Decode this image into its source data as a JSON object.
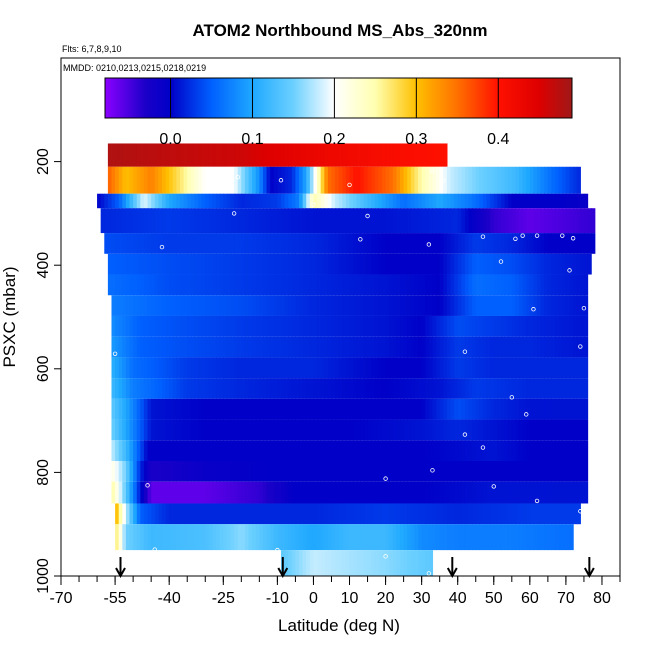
{
  "chart_data": {
    "type": "heatmap",
    "title": "ATOM2 Northbound MS_Abs_320nm",
    "flights_text": "Flts: 6,7,8,9,10",
    "dates_text": "MMDD: 0210,0213,0215,0218,0219",
    "xlabel": "Latitude (deg N)",
    "ylabel": "PSXC (mbar)",
    "xlim": [
      -70,
      85
    ],
    "ylim": [
      1000,
      0
    ],
    "x_ticks": [
      -70,
      -55,
      -40,
      -25,
      -10,
      0,
      10,
      20,
      30,
      40,
      50,
      60,
      70,
      80
    ],
    "x_tick_labels": [
      "-70",
      "-55",
      "-40",
      "-25",
      "-10",
      "0",
      "10",
      "20",
      "30",
      "40",
      "50",
      "60",
      "70",
      "80"
    ],
    "x_minor_step": 5,
    "y_ticks": [
      200,
      400,
      600,
      800,
      1000
    ],
    "y_tick_labels": [
      "200",
      "400",
      "600",
      "800",
      "1000"
    ],
    "colorbar": {
      "range": [
        -0.08,
        0.49
      ],
      "ticks": [
        0.0,
        0.1,
        0.2,
        0.3,
        0.4
      ],
      "tick_labels": [
        "0.0",
        "0.1",
        "0.2",
        "0.3",
        "0.4"
      ],
      "stops": [
        {
          "value": -0.08,
          "color": "#8b00ff"
        },
        {
          "value": -0.03,
          "color": "#1a00c8"
        },
        {
          "value": 0.0,
          "color": "#0000c8"
        },
        {
          "value": 0.05,
          "color": "#0060ff"
        },
        {
          "value": 0.1,
          "color": "#1ea8ff"
        },
        {
          "value": 0.15,
          "color": "#6cd0ff"
        },
        {
          "value": 0.2,
          "color": "#ffffff"
        },
        {
          "value": 0.25,
          "color": "#ffffb0"
        },
        {
          "value": 0.3,
          "color": "#ffc000"
        },
        {
          "value": 0.35,
          "color": "#ff7000"
        },
        {
          "value": 0.4,
          "color": "#ff1000"
        },
        {
          "value": 0.45,
          "color": "#dd0000"
        },
        {
          "value": 0.49,
          "color": "#a01818"
        }
      ]
    },
    "arrow_latitudes": [
      -53.5,
      -8.5,
      38.5,
      76.5
    ],
    "pressure_bands": [
      {
        "p_top": 165,
        "p_bot": 210,
        "lat_start": -57,
        "lat_end": 37,
        "nodes": [
          [
            -57,
            0.48
          ],
          [
            -40,
            0.47
          ],
          [
            -20,
            0.46
          ],
          [
            0,
            0.43
          ],
          [
            20,
            0.41
          ],
          [
            37,
            0.4
          ]
        ]
      },
      {
        "p_top": 210,
        "p_bot": 262,
        "lat_start": -57,
        "lat_end": 74,
        "nodes": [
          [
            -57,
            0.36
          ],
          [
            -52,
            0.3
          ],
          [
            -45,
            0.34
          ],
          [
            -38,
            0.28
          ],
          [
            -30,
            0.2
          ],
          [
            -22,
            0.2
          ],
          [
            -15,
            0.08
          ],
          [
            -12,
            0.0
          ],
          [
            -6,
            0.02
          ],
          [
            -2,
            0.1
          ],
          [
            4,
            0.35
          ],
          [
            12,
            0.4
          ],
          [
            22,
            0.35
          ],
          [
            30,
            0.25
          ],
          [
            38,
            0.18
          ],
          [
            46,
            0.15
          ],
          [
            56,
            0.12
          ],
          [
            66,
            0.06
          ],
          [
            74,
            0.02
          ]
        ]
      },
      {
        "p_top": 262,
        "p_bot": 290,
        "lat_start": -60,
        "lat_end": 76,
        "nodes": [
          [
            -60,
            0.0
          ],
          [
            -54,
            0.05
          ],
          [
            -47,
            0.19
          ],
          [
            -40,
            0.1
          ],
          [
            -30,
            0.05
          ],
          [
            -20,
            0.02
          ],
          [
            -10,
            0.03
          ],
          [
            -4,
            0.07
          ],
          [
            0,
            0.25
          ],
          [
            6,
            0.18
          ],
          [
            15,
            0.12
          ],
          [
            25,
            0.06
          ],
          [
            35,
            0.1
          ],
          [
            45,
            0.06
          ],
          [
            55,
            0.0
          ],
          [
            68,
            0.0
          ],
          [
            76,
            -0.01
          ]
        ]
      },
      {
        "p_top": 290,
        "p_bot": 338,
        "lat_start": -59,
        "lat_end": 78,
        "nodes": [
          [
            -59,
            0.02
          ],
          [
            -40,
            0.03
          ],
          [
            -20,
            0.02
          ],
          [
            0,
            0.01
          ],
          [
            20,
            0.01
          ],
          [
            40,
            0.02
          ],
          [
            50,
            -0.04
          ],
          [
            60,
            -0.06
          ],
          [
            70,
            -0.05
          ],
          [
            78,
            -0.04
          ]
        ]
      },
      {
        "p_top": 338,
        "p_bot": 378,
        "lat_start": -58,
        "lat_end": 78,
        "nodes": [
          [
            -58,
            0.04
          ],
          [
            -40,
            0.03
          ],
          [
            -20,
            0.03
          ],
          [
            0,
            0.02
          ],
          [
            20,
            0.0
          ],
          [
            35,
            0.0
          ],
          [
            45,
            0.03
          ],
          [
            55,
            0.02
          ],
          [
            65,
            0.0
          ],
          [
            78,
            0.0
          ]
        ]
      },
      {
        "p_top": 378,
        "p_bot": 418,
        "lat_start": -57,
        "lat_end": 77,
        "nodes": [
          [
            -57,
            0.05
          ],
          [
            -40,
            0.04
          ],
          [
            -20,
            0.03
          ],
          [
            0,
            0.02
          ],
          [
            20,
            0.0
          ],
          [
            35,
            0.0
          ],
          [
            45,
            0.05
          ],
          [
            55,
            0.04
          ],
          [
            65,
            0.02
          ],
          [
            77,
            0.01
          ]
        ]
      },
      {
        "p_top": 418,
        "p_bot": 458,
        "lat_start": -57,
        "lat_end": 76,
        "nodes": [
          [
            -57,
            0.06
          ],
          [
            -40,
            0.04
          ],
          [
            -20,
            0.03
          ],
          [
            0,
            0.02
          ],
          [
            20,
            0.01
          ],
          [
            35,
            0.0
          ],
          [
            45,
            0.06
          ],
          [
            55,
            0.05
          ],
          [
            65,
            0.02
          ],
          [
            76,
            0.01
          ]
        ]
      },
      {
        "p_top": 458,
        "p_bot": 498,
        "lat_start": -56,
        "lat_end": 76,
        "nodes": [
          [
            -56,
            0.07
          ],
          [
            -40,
            0.05
          ],
          [
            -20,
            0.04
          ],
          [
            0,
            0.02
          ],
          [
            20,
            0.01
          ],
          [
            35,
            0.0
          ],
          [
            45,
            0.05
          ],
          [
            55,
            0.05
          ],
          [
            65,
            0.02
          ],
          [
            76,
            0.01
          ]
        ]
      },
      {
        "p_top": 498,
        "p_bot": 538,
        "lat_start": -56,
        "lat_end": 76,
        "nodes": [
          [
            -56,
            0.08
          ],
          [
            -48,
            0.05
          ],
          [
            -35,
            0.04
          ],
          [
            -20,
            0.03
          ],
          [
            0,
            0.02
          ],
          [
            20,
            0.01
          ],
          [
            30,
            0.0
          ],
          [
            40,
            0.04
          ],
          [
            50,
            0.03
          ],
          [
            60,
            0.02
          ],
          [
            76,
            0.01
          ]
        ]
      },
      {
        "p_top": 538,
        "p_bot": 578,
        "lat_start": -56,
        "lat_end": 76,
        "nodes": [
          [
            -56,
            0.09
          ],
          [
            -48,
            0.05
          ],
          [
            -35,
            0.04
          ],
          [
            -20,
            0.03
          ],
          [
            0,
            0.02
          ],
          [
            20,
            0.01
          ],
          [
            30,
            0.0
          ],
          [
            40,
            0.03
          ],
          [
            50,
            0.02
          ],
          [
            60,
            0.02
          ],
          [
            76,
            0.01
          ]
        ]
      },
      {
        "p_top": 578,
        "p_bot": 618,
        "lat_start": -56,
        "lat_end": 76,
        "nodes": [
          [
            -56,
            0.11
          ],
          [
            -50,
            0.06
          ],
          [
            -35,
            0.03
          ],
          [
            -20,
            0.02
          ],
          [
            0,
            0.02
          ],
          [
            20,
            0.0
          ],
          [
            30,
            0.0
          ],
          [
            40,
            0.03
          ],
          [
            50,
            0.02
          ],
          [
            60,
            0.02
          ],
          [
            76,
            0.02
          ]
        ]
      },
      {
        "p_top": 618,
        "p_bot": 658,
        "lat_start": -56,
        "lat_end": 76,
        "nodes": [
          [
            -56,
            0.12
          ],
          [
            -50,
            0.07
          ],
          [
            -35,
            0.03
          ],
          [
            -20,
            0.02
          ],
          [
            0,
            0.01
          ],
          [
            20,
            0.0
          ],
          [
            35,
            0.01
          ],
          [
            45,
            0.03
          ],
          [
            60,
            0.02
          ],
          [
            76,
            0.02
          ]
        ]
      },
      {
        "p_top": 658,
        "p_bot": 698,
        "lat_start": -56,
        "lat_end": 76,
        "nodes": [
          [
            -56,
            0.14
          ],
          [
            -52,
            0.1
          ],
          [
            -45,
            0.01
          ],
          [
            -30,
            0.0
          ],
          [
            -10,
            0.0
          ],
          [
            10,
            0.0
          ],
          [
            30,
            0.0
          ],
          [
            40,
            0.04
          ],
          [
            50,
            0.02
          ],
          [
            60,
            0.01
          ],
          [
            76,
            0.01
          ]
        ]
      },
      {
        "p_top": 698,
        "p_bot": 738,
        "lat_start": -56,
        "lat_end": 76,
        "nodes": [
          [
            -56,
            0.15
          ],
          [
            -52,
            0.1
          ],
          [
            -45,
            0.01
          ],
          [
            -30,
            0.0
          ],
          [
            -10,
            0.0
          ],
          [
            10,
            0.0
          ],
          [
            30,
            0.01
          ],
          [
            40,
            0.02
          ],
          [
            50,
            0.01
          ],
          [
            60,
            0.0
          ],
          [
            76,
            0.0
          ]
        ]
      },
      {
        "p_top": 738,
        "p_bot": 778,
        "lat_start": -56,
        "lat_end": 76,
        "nodes": [
          [
            -56,
            0.18
          ],
          [
            -52,
            0.12
          ],
          [
            -46,
            0.0
          ],
          [
            -30,
            0.0
          ],
          [
            -10,
            0.0
          ],
          [
            10,
            0.0
          ],
          [
            30,
            0.0
          ],
          [
            50,
            0.01
          ],
          [
            60,
            0.0
          ],
          [
            76,
            0.0
          ]
        ]
      },
      {
        "p_top": 778,
        "p_bot": 818,
        "lat_start": -56,
        "lat_end": 76,
        "nodes": [
          [
            -56,
            0.22
          ],
          [
            -52,
            0.15
          ],
          [
            -48,
            0.02
          ],
          [
            -45,
            -0.03
          ],
          [
            -30,
            -0.01
          ],
          [
            -10,
            0.0
          ],
          [
            10,
            0.0
          ],
          [
            30,
            0.0
          ],
          [
            50,
            0.0
          ],
          [
            76,
            0.0
          ]
        ]
      },
      {
        "p_top": 818,
        "p_bot": 860,
        "lat_start": -56,
        "lat_end": 76,
        "nodes": [
          [
            -56,
            0.26
          ],
          [
            -52,
            0.14
          ],
          [
            -48,
            0.01
          ],
          [
            -45,
            -0.06
          ],
          [
            -30,
            -0.06
          ],
          [
            -15,
            -0.04
          ],
          [
            -5,
            0.0
          ],
          [
            10,
            0.0
          ],
          [
            30,
            0.0
          ],
          [
            50,
            0.01
          ],
          [
            76,
            0.01
          ]
        ]
      },
      {
        "p_top": 860,
        "p_bot": 900,
        "lat_start": -55,
        "lat_end": 74,
        "nodes": [
          [
            -55,
            0.32
          ],
          [
            -52,
            0.18
          ],
          [
            -48,
            0.05
          ],
          [
            -40,
            0.02
          ],
          [
            -20,
            0.02
          ],
          [
            0,
            0.02
          ],
          [
            20,
            0.03
          ],
          [
            40,
            0.02
          ],
          [
            60,
            0.03
          ],
          [
            74,
            0.03
          ]
        ]
      },
      {
        "p_top": 900,
        "p_bot": 950,
        "lat_start": -55,
        "lat_end": 72,
        "nodes": [
          [
            -55,
            0.28
          ],
          [
            -52,
            0.15
          ],
          [
            -45,
            0.12
          ],
          [
            -30,
            0.13
          ],
          [
            -20,
            0.16
          ],
          [
            -10,
            0.12
          ],
          [
            0,
            0.1
          ],
          [
            10,
            0.12
          ],
          [
            20,
            0.12
          ],
          [
            30,
            0.08
          ],
          [
            40,
            0.07
          ],
          [
            55,
            0.07
          ],
          [
            72,
            0.06
          ]
        ]
      },
      {
        "p_top": 950,
        "p_bot": 1000,
        "lat_start": -9,
        "lat_end": 33,
        "nodes": [
          [
            -9,
            0.14
          ],
          [
            0,
            0.18
          ],
          [
            10,
            0.17
          ],
          [
            20,
            0.16
          ],
          [
            33,
            0.14
          ]
        ]
      }
    ],
    "sample_points": [
      [
        -26,
        244
      ],
      [
        -21,
        230
      ],
      [
        -9,
        236
      ],
      [
        10,
        245
      ],
      [
        33,
        218
      ],
      [
        36,
        237
      ],
      [
        -22,
        300
      ],
      [
        -42,
        365
      ],
      [
        0,
        283
      ],
      [
        13,
        350
      ],
      [
        15,
        305
      ],
      [
        32,
        360
      ],
      [
        47,
        345
      ],
      [
        52,
        393
      ],
      [
        56,
        349
      ],
      [
        58,
        343
      ],
      [
        62,
        343
      ],
      [
        69,
        343
      ],
      [
        72,
        348
      ],
      [
        81,
        339
      ],
      [
        71,
        410
      ],
      [
        61,
        485
      ],
      [
        75,
        483
      ],
      [
        74,
        557
      ],
      [
        -55,
        571
      ],
      [
        42,
        567
      ],
      [
        42,
        727
      ],
      [
        55,
        655
      ],
      [
        59,
        688
      ],
      [
        47,
        752
      ],
      [
        20,
        812
      ],
      [
        33,
        796
      ],
      [
        50,
        827
      ],
      [
        62,
        855
      ],
      [
        74,
        875
      ],
      [
        -46,
        825
      ],
      [
        -44,
        949
      ],
      [
        -10,
        950
      ],
      [
        20,
        962
      ],
      [
        32,
        995
      ],
      [
        37,
        963
      ]
    ]
  }
}
